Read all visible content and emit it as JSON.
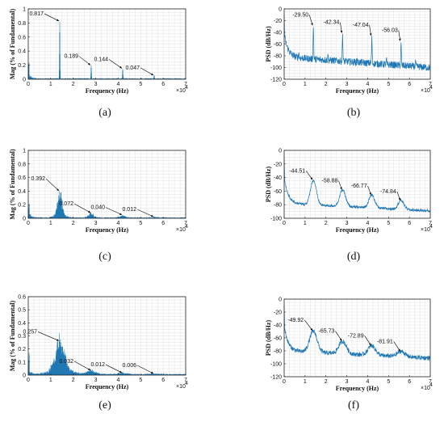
{
  "colors": {
    "trace": "#1f77b4",
    "grid": "#e2e2e2",
    "axis": "#222222",
    "text": "#111111"
  },
  "chart_data": [
    {
      "id": "a",
      "type": "line",
      "caption": "(a)",
      "xlabel": "Frequency (Hz)",
      "ylabel": "Mag (% of Fundamental)",
      "xlim": [
        0,
        7
      ],
      "ylim": [
        0,
        1
      ],
      "xticks": [
        0,
        1,
        2,
        3,
        4,
        5,
        6,
        7
      ],
      "yticks": [
        0,
        0.2,
        0.4,
        0.6,
        0.8,
        1
      ],
      "ytick_labels": [
        "0",
        "0.2",
        "0.4",
        "0.6",
        "0.8",
        "1"
      ],
      "x_multiplier": "×10",
      "x_multiplier_exp": "4",
      "peaks": [
        {
          "x": 1.4,
          "value": 0.817,
          "label": "0.817"
        },
        {
          "x": 2.8,
          "value": 0.189,
          "label": "0.189"
        },
        {
          "x": 4.2,
          "value": 0.144,
          "label": "0.144"
        },
        {
          "x": 5.6,
          "value": 0.047,
          "label": "0.047"
        }
      ]
    },
    {
      "id": "b",
      "type": "line",
      "caption": "(b)",
      "xlabel": "Frequency (Hz)",
      "ylabel": "PSD (dB/Hz)",
      "xlim": [
        0,
        7
      ],
      "ylim": [
        -120,
        0
      ],
      "xticks": [
        0,
        1,
        2,
        3,
        4,
        5,
        6,
        7
      ],
      "yticks": [
        -120,
        -100,
        -80,
        -60,
        -40,
        -20,
        0
      ],
      "ytick_labels": [
        "-120",
        "-100",
        "-80",
        "-60",
        "-40",
        "-20",
        "0"
      ],
      "x_multiplier": "×10",
      "x_multiplier_exp": "4",
      "peaks": [
        {
          "x": 1.4,
          "value": -29.5,
          "label": "-29.50"
        },
        {
          "x": 2.8,
          "value": -42.34,
          "label": "-42.34"
        },
        {
          "x": 4.2,
          "value": -47.04,
          "label": "-47.04"
        },
        {
          "x": 5.6,
          "value": -56.03,
          "label": "-56.03"
        }
      ]
    },
    {
      "id": "c",
      "type": "line",
      "caption": "(c)",
      "xlabel": "Frequency (Hz)",
      "ylabel": "Mag (% of Fundamental)",
      "xlim": [
        0,
        7
      ],
      "ylim": [
        0,
        1
      ],
      "xticks": [
        0,
        1,
        2,
        3,
        4,
        5,
        6,
        7
      ],
      "yticks": [
        0,
        0.2,
        0.4,
        0.6,
        0.8,
        1
      ],
      "ytick_labels": [
        "0",
        "0.2",
        "0.4",
        "0.6",
        "0.8",
        "1"
      ],
      "x_multiplier": "×10",
      "x_multiplier_exp": "4",
      "peaks": [
        {
          "x": 1.4,
          "value": 0.392,
          "label": "0.392"
        },
        {
          "x": 2.8,
          "value": 0.072,
          "label": "0.072"
        },
        {
          "x": 4.2,
          "value": 0.04,
          "label": "0.040"
        },
        {
          "x": 5.6,
          "value": 0.012,
          "label": "0.012"
        }
      ]
    },
    {
      "id": "d",
      "type": "line",
      "caption": "(d)",
      "xlabel": "Frequency (Hz)",
      "ylabel": "PSD (dB/Hz)",
      "xlim": [
        0,
        7
      ],
      "ylim": [
        -100,
        0
      ],
      "xticks": [
        0,
        1,
        2,
        3,
        4,
        5,
        6,
        7
      ],
      "yticks": [
        -100,
        -80,
        -60,
        -40,
        -20,
        0
      ],
      "ytick_labels": [
        "-100",
        "-80",
        "-60",
        "-40",
        "-20",
        "0"
      ],
      "x_multiplier": "×10",
      "x_multiplier_exp": "4",
      "peaks": [
        {
          "x": 1.4,
          "value": -44.51,
          "label": "-44.51"
        },
        {
          "x": 2.8,
          "value": -58.88,
          "label": "-58.88"
        },
        {
          "x": 4.2,
          "value": -66.77,
          "label": "-66.77"
        },
        {
          "x": 5.6,
          "value": -74.84,
          "label": "-74.84"
        }
      ]
    },
    {
      "id": "e",
      "type": "line",
      "caption": "(e)",
      "xlabel": "Frequency (Hz)",
      "ylabel": "Mag (% of Fundamental)",
      "xlim": [
        0,
        7
      ],
      "ylim": [
        0,
        0.6
      ],
      "xticks": [
        0,
        1,
        2,
        3,
        4,
        5,
        6,
        7
      ],
      "yticks": [
        0,
        0.1,
        0.2,
        0.3,
        0.4,
        0.5,
        0.6
      ],
      "ytick_labels": [
        "0",
        "0.1",
        "0.2",
        "0.3",
        "0.4",
        "0.5",
        "0.6"
      ],
      "x_multiplier": "×10",
      "x_multiplier_exp": "4",
      "peaks": [
        {
          "x": 1.4,
          "value": 0.257,
          "label": "0.257"
        },
        {
          "x": 2.8,
          "value": 0.032,
          "label": "0.032"
        },
        {
          "x": 4.2,
          "value": 0.012,
          "label": "0.012"
        },
        {
          "x": 5.6,
          "value": 0.006,
          "label": "0.006"
        }
      ]
    },
    {
      "id": "f",
      "type": "line",
      "caption": "(f)",
      "xlabel": "Frequency (Hz)",
      "ylabel": "PSD (dB/Hz)",
      "xlim": [
        0,
        7
      ],
      "ylim": [
        -120,
        0
      ],
      "xticks": [
        0,
        1,
        2,
        3,
        4,
        5,
        6,
        7
      ],
      "yticks": [
        -120,
        -100,
        -80,
        -60,
        -40,
        -20,
        0
      ],
      "ytick_labels": [
        "-120",
        "-100",
        "-80",
        "-60",
        "-40",
        "-20",
        "0"
      ],
      "x_multiplier": "×10",
      "x_multiplier_exp": "4",
      "peaks": [
        {
          "x": 1.4,
          "value": -49.92,
          "label": "-49.92"
        },
        {
          "x": 2.8,
          "value": -65.73,
          "label": "-65.73"
        },
        {
          "x": 4.2,
          "value": -72.89,
          "label": "-72.89"
        },
        {
          "x": 5.6,
          "value": -81.91,
          "label": "-81.91"
        }
      ]
    }
  ]
}
